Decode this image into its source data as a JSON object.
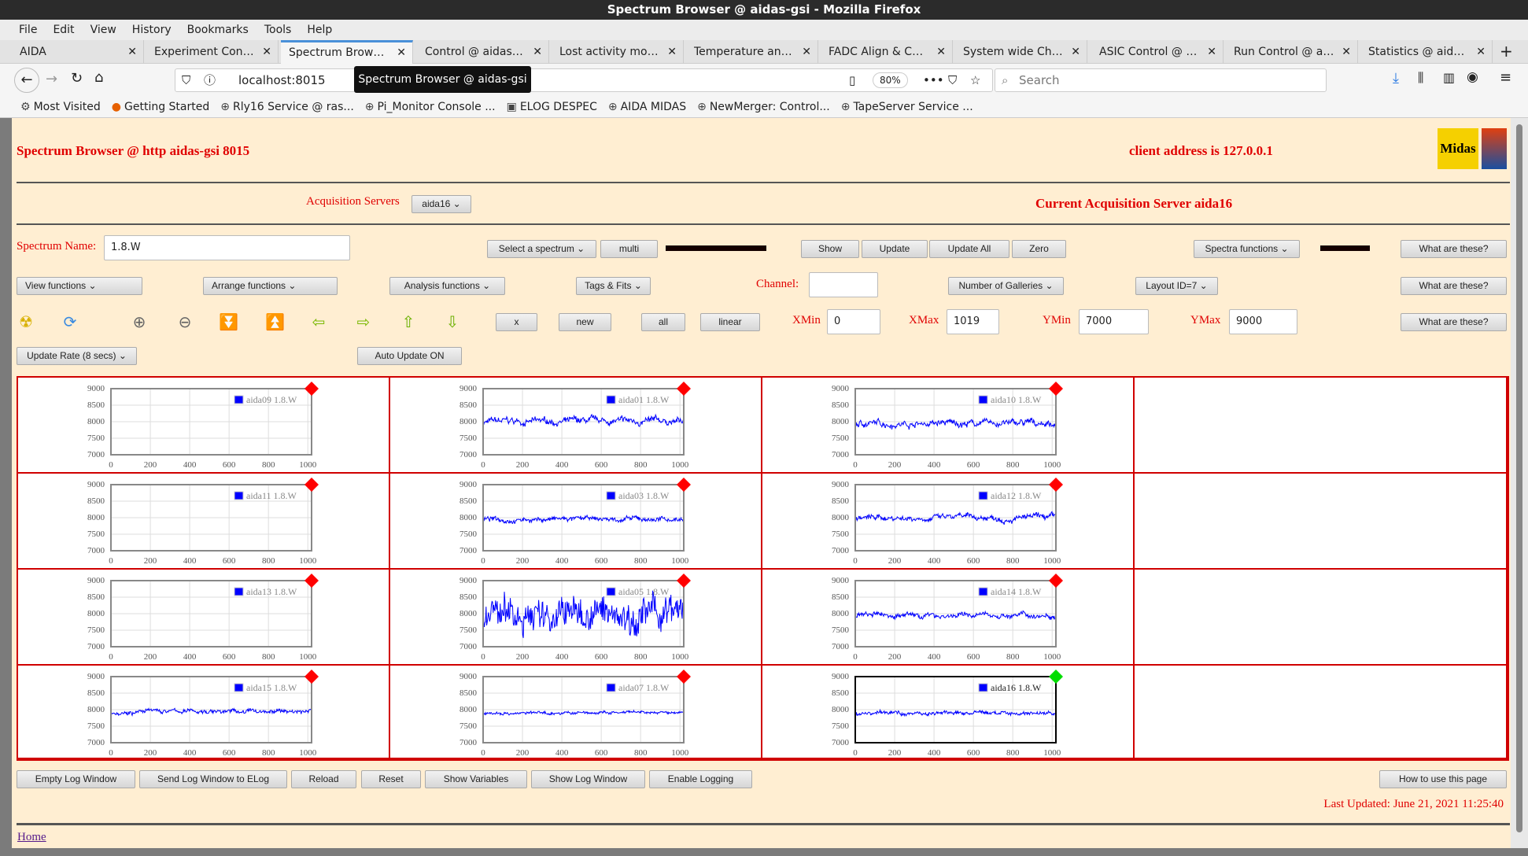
{
  "window": {
    "title": "Spectrum Browser @ aidas-gsi - Mozilla Firefox"
  },
  "menu": [
    "File",
    "Edit",
    "View",
    "History",
    "Bookmarks",
    "Tools",
    "Help"
  ],
  "tabs": [
    "AIDA",
    "Experiment Control",
    "Spectrum Browser @ aidas-gsi",
    "Control @ aidas-gsi",
    "Lost activity monitor",
    "Temperature and status",
    "FADC Align & Control",
    "System wide Checks",
    "ASIC Control @ aidas-gsi",
    "Run Control @ aidas-gsi",
    "Statistics @ aidas-gsi"
  ],
  "active_tab": 2,
  "nav": {
    "url": "localhost:8015",
    "zoom": "80%",
    "search_placeholder": "Search",
    "tooltip": "Spectrum Browser @ aidas-gsi"
  },
  "bookmarks": [
    "Most Visited",
    "Getting Started",
    "Rly16 Service @ ras...",
    "Pi_Monitor Console ...",
    "ELOG DESPEC",
    "AIDA MIDAS",
    "NewMerger: Control...",
    "TapeServer Service ..."
  ],
  "header": {
    "title": "Spectrum Browser @ http aidas-gsi 8015",
    "client": "client address is 127.0.0.1",
    "logo_text": "Midas",
    "acq_label": "Acquisition Servers",
    "acq_select": "aida16",
    "current_server": "Current Acquisition Server aida16"
  },
  "controls": {
    "spectrum_name_label": "Spectrum Name:",
    "spectrum_name": "1.8.W",
    "select_spectrum": "Select a spectrum",
    "multi": "multi",
    "show": "Show",
    "update": "Update",
    "update_all": "Update All",
    "zero": "Zero",
    "spectra_functions": "Spectra functions",
    "what": "What are these?",
    "view_functions": "View functions",
    "arrange_functions": "Arrange functions",
    "analysis_functions": "Analysis functions",
    "tags_fits": "Tags & Fits",
    "channel_label": "Channel:",
    "channel": "",
    "galleries": "Number of Galleries",
    "layout": "Layout ID=7",
    "x": "x",
    "new": "new",
    "all": "all",
    "linear": "linear",
    "xmin_label": "XMin",
    "xmin": "0",
    "xmax_label": "XMax",
    "xmax": "1019",
    "ymin_label": "YMin",
    "ymin": "7000",
    "ymax_label": "YMax",
    "ymax": "9000",
    "update_rate": "Update Rate (8 secs)",
    "auto_update": "Auto Update ON",
    "icons": [
      "radiation-icon",
      "refresh-icon",
      "zoom-in-icon",
      "zoom-out-icon",
      "expand-down-icon",
      "expand-up-icon",
      "arrow-left-icon",
      "arrow-right-icon",
      "arrow-up-icon",
      "arrow-down-icon"
    ]
  },
  "footer": {
    "buttons": [
      "Empty Log Window",
      "Send Log Window to ELog",
      "Reload",
      "Reset",
      "Show Variables",
      "Show Log Window",
      "Enable Logging"
    ],
    "how_to": "How to use this page",
    "last_updated": "Last Updated: June 21, 2021 11:25:40",
    "home": "Home"
  },
  "chart_data": {
    "type": "line",
    "xlim": [
      0,
      1019
    ],
    "ylim": [
      7000,
      9000
    ],
    "xticks": [
      "0",
      "200",
      "400",
      "600",
      "800",
      "1000"
    ],
    "yticks": [
      "9000",
      "8500",
      "8000",
      "7500",
      "7000"
    ],
    "grid": true,
    "legend": "top-right",
    "series_color": "#0000ff",
    "panels": [
      {
        "name": "aida09 1.8.W",
        "status": "#ff0000",
        "level": null,
        "spread": 0
      },
      {
        "name": "aida01 1.8.W",
        "status": "#ff0000",
        "level": 8000,
        "spread": 150
      },
      {
        "name": "aida10 1.8.W",
        "status": "#ff0000",
        "level": 7950,
        "spread": 150
      },
      null,
      {
        "name": "aida11 1.8.W",
        "status": "#ff0000",
        "level": null,
        "spread": 0
      },
      {
        "name": "aida03 1.8.W",
        "status": "#ff0000",
        "level": 7950,
        "spread": 110
      },
      {
        "name": "aida12 1.8.W",
        "status": "#ff0000",
        "level": 8000,
        "spread": 130
      },
      null,
      {
        "name": "aida13 1.8.W",
        "status": "#ff0000",
        "level": null,
        "spread": 0
      },
      {
        "name": "aida05 1.8.W",
        "status": "#ff0000",
        "level": 8000,
        "spread": 500
      },
      {
        "name": "aida14 1.8.W",
        "status": "#ff0000",
        "level": 7950,
        "spread": 120
      },
      null,
      {
        "name": "aida15 1.8.W",
        "status": "#ff0000",
        "level": 7950,
        "spread": 100
      },
      {
        "name": "aida07 1.8.W",
        "status": "#ff0000",
        "level": 7900,
        "spread": 70
      },
      {
        "name": "aida16 1.8.W",
        "status": "#00dd00",
        "level": 7900,
        "spread": 90,
        "selected": true
      },
      null
    ]
  }
}
